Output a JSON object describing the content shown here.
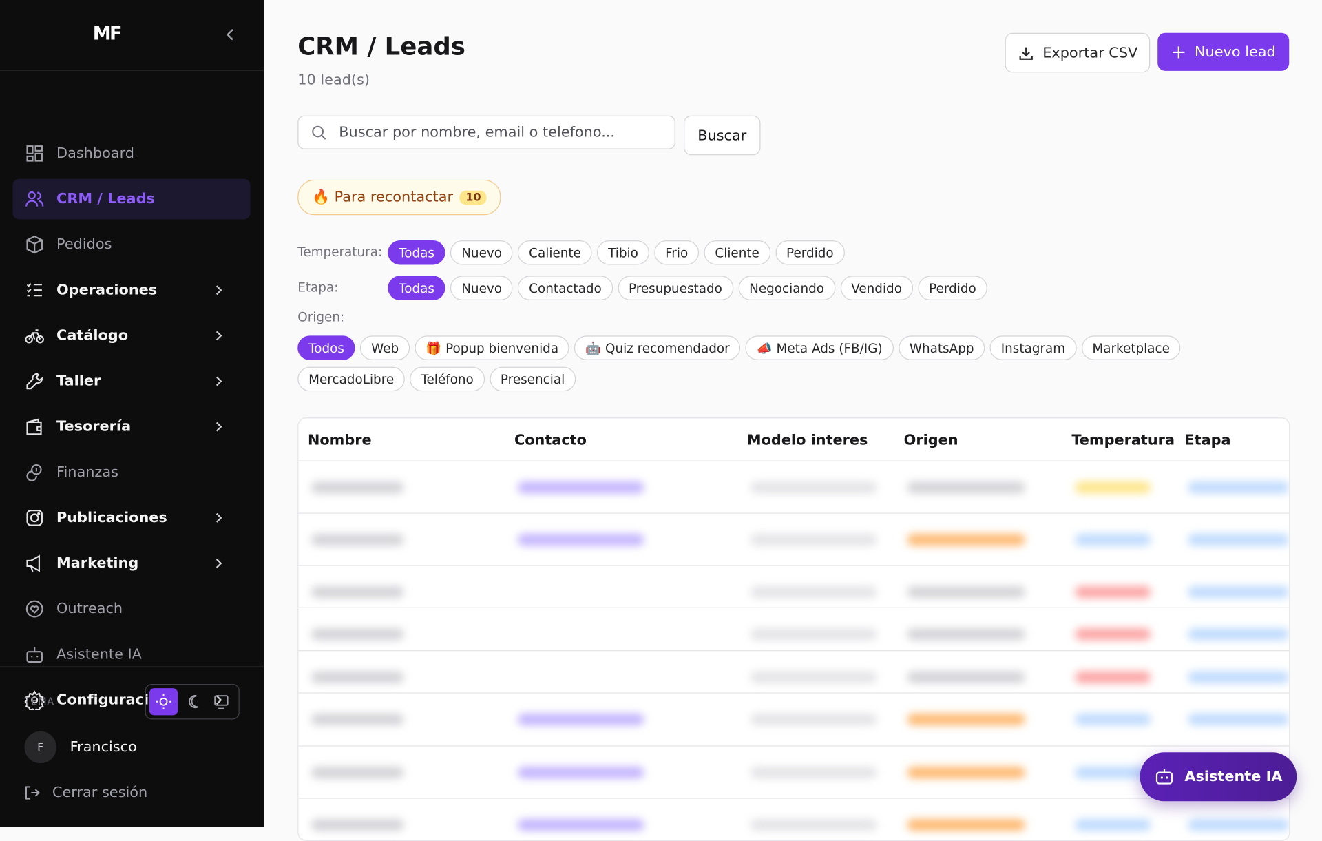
{
  "sidebar": {
    "logo": "MF",
    "nav": [
      {
        "label": "Dashboard",
        "icon": "grid"
      },
      {
        "label": "CRM / Leads",
        "icon": "users",
        "active": true
      },
      {
        "label": "Pedidos",
        "icon": "box"
      },
      {
        "label": "Operaciones",
        "icon": "list",
        "submenu": true
      },
      {
        "label": "Catálogo",
        "icon": "bike",
        "submenu": true
      },
      {
        "label": "Taller",
        "icon": "wrench",
        "submenu": true
      },
      {
        "label": "Tesorería",
        "icon": "wallet",
        "submenu": true
      },
      {
        "label": "Finanzas",
        "icon": "coins"
      },
      {
        "label": "Publicaciones",
        "icon": "insta",
        "submenu": true
      },
      {
        "label": "Marketing",
        "icon": "mega",
        "submenu": true
      },
      {
        "label": "Outreach",
        "icon": "heart"
      },
      {
        "label": "Asistente IA",
        "icon": "bot"
      },
      {
        "label": "Configuración",
        "icon": "gear",
        "submenu": true
      }
    ],
    "theme_label": "TEMA",
    "user_initial": "F",
    "user_name": "Francisco",
    "logout": "Cerrar sesión"
  },
  "header": {
    "title": "CRM / Leads",
    "count": "10 lead(s)",
    "export": "Exportar CSV",
    "new": "Nuevo lead"
  },
  "search": {
    "placeholder": "Buscar por nombre, email o telefono...",
    "button": "Buscar"
  },
  "recontact": {
    "label": "🔥 Para recontactar",
    "count": "10"
  },
  "filters": [
    {
      "label": "Temperatura:",
      "options": [
        "Todas",
        "Nuevo",
        "Caliente",
        "Tibio",
        "Frio",
        "Cliente",
        "Perdido"
      ],
      "selected": 0
    },
    {
      "label": "Etapa:",
      "options": [
        "Todas",
        "Nuevo",
        "Contactado",
        "Presupuestado",
        "Negociando",
        "Vendido",
        "Perdido"
      ],
      "selected": 0
    },
    {
      "label": "Origen:",
      "options": [
        "Todos",
        "Web",
        "🎁 Popup bienvenida",
        "🤖 Quiz recomendador",
        "📣 Meta Ads (FB/IG)",
        "WhatsApp",
        "Instagram",
        "Marketplace",
        "MercadoLibre",
        "Teléfono",
        "Presencial"
      ],
      "selected": 0
    }
  ],
  "table": {
    "columns": [
      "Nombre",
      "Contacto",
      "Modelo interes",
      "Origen",
      "Temperatura",
      "Etapa"
    ]
  },
  "assistant": "Asistente IA"
}
